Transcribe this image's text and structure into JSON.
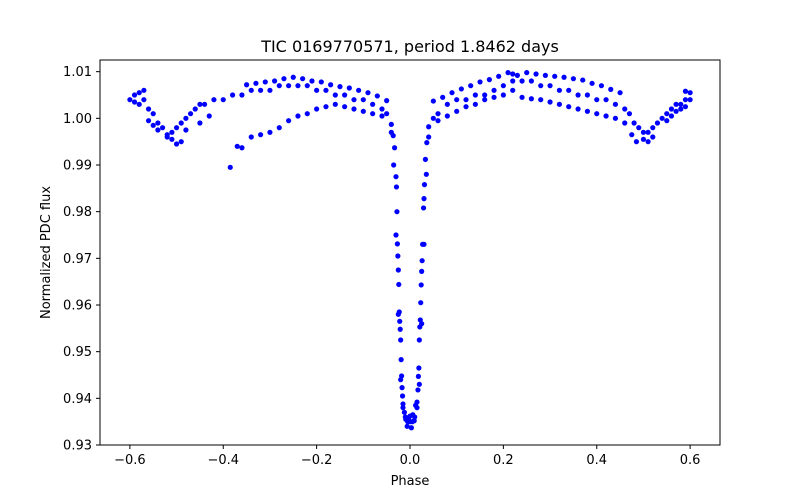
{
  "chart_data": {
    "type": "scatter",
    "title": "TIC 0169770571, period 1.8462 days",
    "xlabel": "Phase",
    "ylabel": "Normalized PDC flux",
    "xlim": [
      -0.664,
      0.664
    ],
    "ylim": [
      0.93,
      1.0125
    ],
    "xticks": [
      -0.6,
      -0.4,
      -0.2,
      0.0,
      0.2,
      0.4,
      0.6
    ],
    "xtick_labels": [
      "−0.6",
      "−0.4",
      "−0.2",
      "0.0",
      "0.2",
      "0.4",
      "0.6"
    ],
    "yticks": [
      0.93,
      0.94,
      0.95,
      0.96,
      0.97,
      0.98,
      0.99,
      1.0,
      1.01
    ],
    "ytick_labels": [
      "0.93",
      "0.94",
      "0.95",
      "0.96",
      "0.97",
      "0.98",
      "0.99",
      "1.00",
      "1.01"
    ],
    "grid": false,
    "marker_color": "#0000ff",
    "series": [
      {
        "points": [
          [
            -0.6,
            1.004
          ],
          [
            -0.59,
            1.005
          ],
          [
            -0.58,
            1.003
          ],
          [
            -0.57,
            1.004
          ],
          [
            -0.56,
            1.002
          ],
          [
            -0.55,
            1.001
          ],
          [
            -0.54,
            0.999
          ],
          [
            -0.53,
            0.998
          ],
          [
            -0.52,
            0.996
          ],
          [
            -0.51,
            0.997
          ],
          [
            -0.5,
            0.998
          ],
          [
            -0.49,
            0.999
          ],
          [
            -0.48,
            1.0
          ],
          [
            -0.47,
            1.001
          ],
          [
            -0.46,
            1.002
          ],
          [
            -0.45,
            1.003
          ],
          [
            -0.44,
            1.003
          ],
          [
            -0.42,
            1.004
          ],
          [
            -0.4,
            1.004
          ],
          [
            -0.38,
            1.005
          ],
          [
            -0.36,
            1.005
          ],
          [
            -0.34,
            1.006
          ],
          [
            -0.32,
            1.006
          ],
          [
            -0.3,
            1.006
          ],
          [
            -0.28,
            1.007
          ],
          [
            -0.26,
            1.007
          ],
          [
            -0.24,
            1.007
          ],
          [
            -0.22,
            1.007
          ],
          [
            -0.2,
            1.006
          ],
          [
            -0.18,
            1.006
          ],
          [
            -0.16,
            1.005
          ],
          [
            -0.14,
            1.005
          ],
          [
            -0.12,
            1.004
          ],
          [
            -0.1,
            1.004
          ],
          [
            -0.08,
            1.003
          ],
          [
            -0.06,
            1.002
          ],
          [
            -0.05,
            1.001
          ],
          [
            -0.04,
            0.997
          ],
          [
            -0.035,
            0.99
          ],
          [
            -0.03,
            0.975
          ],
          [
            -0.025,
            0.958
          ],
          [
            -0.02,
            0.944
          ],
          [
            -0.015,
            0.938
          ],
          [
            -0.01,
            0.936
          ],
          [
            -0.005,
            0.935
          ],
          [
            0.0,
            0.935
          ],
          [
            0.005,
            0.935
          ],
          [
            0.01,
            0.936
          ],
          [
            0.015,
            0.938
          ],
          [
            0.02,
            0.943
          ],
          [
            0.025,
            0.956
          ],
          [
            0.03,
            0.973
          ],
          [
            0.035,
            0.988
          ],
          [
            0.04,
            0.996
          ],
          [
            0.05,
            1.0
          ],
          [
            0.06,
            1.001
          ],
          [
            0.08,
            1.003
          ],
          [
            0.1,
            1.004
          ],
          [
            0.12,
            1.004
          ],
          [
            0.14,
            1.005
          ],
          [
            0.16,
            1.005
          ],
          [
            0.18,
            1.006
          ],
          [
            0.2,
            1.007
          ],
          [
            0.22,
            1.008
          ],
          [
            0.24,
            1.008
          ],
          [
            0.26,
            1.008
          ],
          [
            0.28,
            1.007
          ],
          [
            0.3,
            1.007
          ],
          [
            0.32,
            1.006
          ],
          [
            0.34,
            1.006
          ],
          [
            0.36,
            1.005
          ],
          [
            0.38,
            1.005
          ],
          [
            0.4,
            1.004
          ],
          [
            0.42,
            1.004
          ],
          [
            0.44,
            1.003
          ],
          [
            0.46,
            1.002
          ],
          [
            0.47,
            1.001
          ],
          [
            0.48,
            0.999
          ],
          [
            0.49,
            0.998
          ],
          [
            0.5,
            0.997
          ],
          [
            0.51,
            0.997
          ],
          [
            0.52,
            0.998
          ],
          [
            0.53,
            0.999
          ],
          [
            0.54,
            1.0
          ],
          [
            0.55,
            1.001
          ],
          [
            0.56,
            1.002
          ],
          [
            0.57,
            1.003
          ],
          [
            0.58,
            1.003
          ],
          [
            0.59,
            1.004
          ],
          [
            0.6,
            1.004
          ],
          [
            -0.385,
            0.9895
          ],
          [
            -0.37,
            0.994
          ],
          [
            -0.36,
            0.9937
          ],
          [
            -0.34,
            0.996
          ],
          [
            -0.32,
            0.9965
          ],
          [
            -0.3,
            0.997
          ],
          [
            -0.28,
            0.998
          ],
          [
            -0.26,
            0.9995
          ],
          [
            -0.24,
            1.0005
          ],
          [
            -0.22,
            1.001
          ],
          [
            -0.2,
            1.002
          ],
          [
            -0.18,
            1.0025
          ],
          [
            -0.16,
            1.003
          ],
          [
            -0.14,
            1.0025
          ],
          [
            -0.12,
            1.002
          ],
          [
            -0.1,
            1.0015
          ],
          [
            -0.08,
            1.001
          ],
          [
            -0.06,
            1.0005
          ],
          [
            -0.04,
            0.9987
          ],
          [
            -0.036,
            0.9963
          ],
          [
            -0.033,
            0.9937
          ],
          [
            -0.03,
            0.9875
          ],
          [
            -0.029,
            0.9853
          ],
          [
            -0.028,
            0.98
          ],
          [
            -0.027,
            0.9731
          ],
          [
            -0.026,
            0.9705
          ],
          [
            -0.025,
            0.9675
          ],
          [
            -0.024,
            0.9644
          ],
          [
            -0.023,
            0.9585
          ],
          [
            -0.022,
            0.9565
          ],
          [
            -0.021,
            0.9548
          ],
          [
            -0.02,
            0.9525
          ],
          [
            -0.019,
            0.9483
          ],
          [
            -0.018,
            0.9448
          ],
          [
            -0.017,
            0.9423
          ],
          [
            -0.016,
            0.9405
          ],
          [
            -0.015,
            0.9388
          ],
          [
            -0.012,
            0.937
          ],
          [
            -0.009,
            0.9355
          ],
          [
            -0.006,
            0.934
          ],
          [
            -0.003,
            0.9355
          ],
          [
            0.0,
            0.9362
          ],
          [
            0.003,
            0.9337
          ],
          [
            0.006,
            0.9365
          ],
          [
            0.009,
            0.9352
          ],
          [
            0.012,
            0.9385
          ],
          [
            0.015,
            0.9392
          ],
          [
            0.017,
            0.9418
          ],
          [
            0.018,
            0.9447
          ],
          [
            0.019,
            0.9465
          ],
          [
            0.02,
            0.9525
          ],
          [
            0.021,
            0.9553
          ],
          [
            0.022,
            0.9568
          ],
          [
            0.023,
            0.9605
          ],
          [
            0.024,
            0.9643
          ],
          [
            0.025,
            0.9672
          ],
          [
            0.026,
            0.9695
          ],
          [
            0.027,
            0.973
          ],
          [
            0.029,
            0.9808
          ],
          [
            0.03,
            0.9828
          ],
          [
            0.031,
            0.9858
          ],
          [
            0.033,
            0.9912
          ],
          [
            0.036,
            0.9948
          ],
          [
            0.04,
            0.9982
          ],
          [
            0.06,
            0.9995
          ],
          [
            0.08,
            1.0005
          ],
          [
            0.1,
            1.0015
          ],
          [
            0.12,
            1.0025
          ],
          [
            0.14,
            1.003
          ],
          [
            0.16,
            1.004
          ],
          [
            0.18,
            1.0045
          ],
          [
            0.2,
            1.005
          ],
          [
            0.22,
            1.006
          ],
          [
            0.24,
            1.0045
          ],
          [
            0.26,
            1.0042
          ],
          [
            0.28,
            1.004
          ],
          [
            0.3,
            1.0035
          ],
          [
            0.32,
            1.003
          ],
          [
            0.34,
            1.0025
          ],
          [
            0.36,
            1.002
          ],
          [
            0.38,
            1.0015
          ],
          [
            0.4,
            1.001
          ],
          [
            0.42,
            1.0005
          ],
          [
            0.44,
            1.0
          ],
          [
            0.46,
            0.999
          ],
          [
            0.475,
            0.9965
          ],
          [
            0.485,
            0.995
          ],
          [
            0.5,
            0.9955
          ],
          [
            0.51,
            0.995
          ],
          [
            0.52,
            0.996
          ],
          [
            -0.5,
            0.9945
          ],
          [
            -0.49,
            0.995
          ],
          [
            -0.51,
            0.9955
          ],
          [
            -0.52,
            0.9965
          ],
          [
            -0.48,
            0.9975
          ],
          [
            -0.56,
            0.9995
          ],
          [
            -0.55,
            0.9985
          ],
          [
            -0.54,
            0.9975
          ],
          [
            -0.45,
            0.999
          ],
          [
            -0.43,
            1.0005
          ],
          [
            0.55,
            0.9995
          ],
          [
            0.56,
            1.0005
          ],
          [
            0.57,
            1.0015
          ],
          [
            0.58,
            1.002
          ],
          [
            0.59,
            1.0025
          ],
          [
            -0.58,
            1.0055
          ],
          [
            -0.57,
            1.006
          ],
          [
            -0.59,
            1.0035
          ],
          [
            0.6,
            1.0055
          ],
          [
            0.59,
            1.0058
          ],
          [
            -0.35,
            1.0072
          ],
          [
            -0.33,
            1.0075
          ],
          [
            -0.31,
            1.0078
          ],
          [
            -0.29,
            1.008
          ],
          [
            -0.27,
            1.0085
          ],
          [
            -0.25,
            1.0088
          ],
          [
            -0.23,
            1.0085
          ],
          [
            -0.21,
            1.008
          ],
          [
            -0.19,
            1.0078
          ],
          [
            -0.17,
            1.0072
          ],
          [
            0.21,
            1.0098
          ],
          [
            0.22,
            1.0095
          ],
          [
            0.23,
            1.0092
          ],
          [
            0.25,
            1.0098
          ],
          [
            0.27,
            1.0095
          ],
          [
            0.29,
            1.0092
          ],
          [
            0.31,
            1.009
          ],
          [
            0.33,
            1.0088
          ],
          [
            0.35,
            1.0085
          ],
          [
            0.37,
            1.0082
          ],
          [
            0.39,
            1.0075
          ],
          [
            0.41,
            1.007
          ],
          [
            0.43,
            1.0062
          ],
          [
            0.45,
            1.0055
          ],
          [
            0.19,
            1.009
          ],
          [
            0.17,
            1.0083
          ],
          [
            0.15,
            1.0078
          ],
          [
            0.13,
            1.007
          ],
          [
            0.11,
            1.0063
          ],
          [
            0.09,
            1.0055
          ],
          [
            0.07,
            1.0045
          ],
          [
            0.05,
            1.0037
          ],
          [
            -0.05,
            1.0038
          ],
          [
            -0.07,
            1.0048
          ],
          [
            -0.09,
            1.0055
          ],
          [
            -0.11,
            1.006
          ],
          [
            -0.13,
            1.0065
          ],
          [
            -0.15,
            1.0068
          ]
        ]
      }
    ]
  }
}
